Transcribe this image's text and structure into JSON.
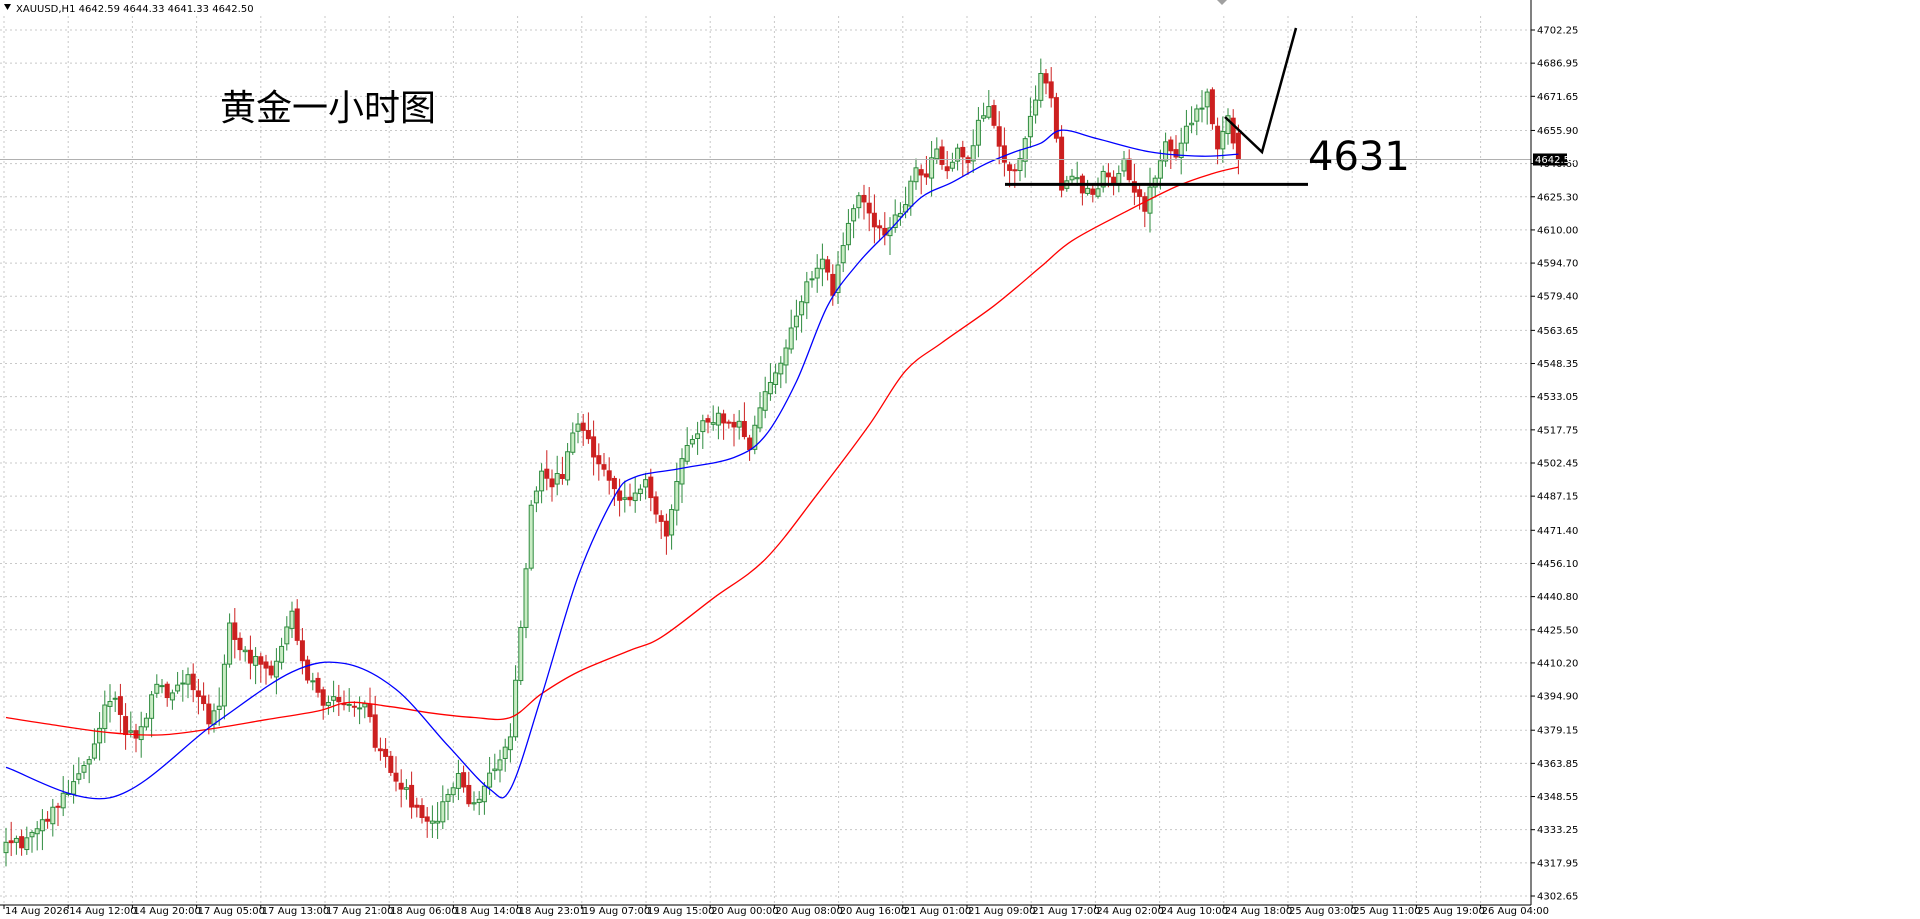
{
  "window": {
    "symbol_header": "XAUUSD,H1  4642.59 4644.33 4641.33 4642.50"
  },
  "chart_data": {
    "type": "candlestick",
    "symbol": "XAUUSD",
    "timeframe": "H1",
    "ohlc_header": {
      "open": 4642.59,
      "high": 4644.33,
      "low": 4641.33,
      "close": 4642.5
    },
    "current_price_label": "4642.50",
    "ylim": [
      4302.65,
      4710.0
    ],
    "y_ticks": [
      "4702.25",
      "4686.95",
      "4671.65",
      "4655.90",
      "4640.60",
      "4625.30",
      "4610.00",
      "4594.70",
      "4579.40",
      "4563.65",
      "4548.35",
      "4533.05",
      "4517.75",
      "4502.45",
      "4487.15",
      "4471.40",
      "4456.10",
      "4440.80",
      "4425.50",
      "4410.20",
      "4394.90",
      "4379.15",
      "4363.85",
      "4348.55",
      "4333.25",
      "4317.95",
      "4302.65"
    ],
    "x_ticks": [
      "14 Aug 2026",
      "14 Aug 12:00",
      "14 Aug 20:00",
      "17 Aug 05:00",
      "17 Aug 13:00",
      "17 Aug 21:00",
      "18 Aug 06:00",
      "18 Aug 14:00",
      "18 Aug 23:01",
      "19 Aug 07:00",
      "19 Aug 15:00",
      "20 Aug 00:00",
      "20 Aug 08:00",
      "20 Aug 16:00",
      "21 Aug 01:00",
      "21 Aug 09:00",
      "21 Aug 17:00",
      "24 Aug 02:00",
      "24 Aug 10:00",
      "24 Aug 18:00",
      "25 Aug 03:00",
      "25 Aug 11:00",
      "25 Aug 19:00",
      "26 Aug 04:00"
    ],
    "candle_colors": {
      "bull": "#2e8b3e",
      "bear": "#cc2020",
      "bull_body": "#c9ecc4",
      "bear_body": "#cc2020"
    },
    "close_path": [
      [
        0,
        4325
      ],
      [
        4,
        4328
      ],
      [
        8,
        4340
      ],
      [
        12,
        4352
      ],
      [
        15,
        4362
      ],
      [
        17,
        4375
      ],
      [
        19,
        4388
      ],
      [
        21,
        4392
      ],
      [
        23,
        4380
      ],
      [
        25,
        4376
      ],
      [
        27,
        4385
      ],
      [
        29,
        4402
      ],
      [
        31,
        4392
      ],
      [
        33,
        4398
      ],
      [
        35,
        4404
      ],
      [
        37,
        4395
      ],
      [
        39,
        4385
      ],
      [
        41,
        4392
      ],
      [
        43,
        4426
      ],
      [
        45,
        4418
      ],
      [
        47,
        4410
      ],
      [
        49,
        4412
      ],
      [
        51,
        4404
      ],
      [
        53,
        4420
      ],
      [
        55,
        4432
      ],
      [
        57,
        4410
      ],
      [
        59,
        4400
      ],
      [
        61,
        4392
      ],
      [
        63,
        4395
      ],
      [
        65,
        4392
      ],
      [
        67,
        4388
      ],
      [
        69,
        4394
      ],
      [
        71,
        4374
      ],
      [
        73,
        4365
      ],
      [
        75,
        4356
      ],
      [
        77,
        4350
      ],
      [
        79,
        4342
      ],
      [
        81,
        4336
      ],
      [
        83,
        4340
      ],
      [
        85,
        4350
      ],
      [
        87,
        4358
      ],
      [
        89,
        4346
      ],
      [
        91,
        4350
      ],
      [
        93,
        4362
      ],
      [
        95,
        4366
      ],
      [
        97,
        4376
      ],
      [
        99,
        4428
      ],
      [
        101,
        4482
      ],
      [
        103,
        4496
      ],
      [
        105,
        4492
      ],
      [
        107,
        4498
      ],
      [
        109,
        4518
      ],
      [
        111,
        4520
      ],
      [
        113,
        4508
      ],
      [
        115,
        4500
      ],
      [
        117,
        4492
      ],
      [
        119,
        4484
      ],
      [
        121,
        4486
      ],
      [
        123,
        4492
      ],
      [
        125,
        4478
      ],
      [
        127,
        4468
      ],
      [
        129,
        4496
      ],
      [
        131,
        4512
      ],
      [
        133,
        4518
      ],
      [
        135,
        4520
      ],
      [
        137,
        4524
      ],
      [
        139,
        4520
      ],
      [
        141,
        4522
      ],
      [
        143,
        4508
      ],
      [
        145,
        4530
      ],
      [
        147,
        4538
      ],
      [
        149,
        4548
      ],
      [
        151,
        4562
      ],
      [
        153,
        4578
      ],
      [
        155,
        4590
      ],
      [
        157,
        4596
      ],
      [
        159,
        4582
      ],
      [
        161,
        4602
      ],
      [
        163,
        4622
      ],
      [
        165,
        4625
      ],
      [
        167,
        4614
      ],
      [
        169,
        4608
      ],
      [
        171,
        4616
      ],
      [
        173,
        4624
      ],
      [
        175,
        4640
      ],
      [
        177,
        4636
      ],
      [
        179,
        4648
      ],
      [
        181,
        4638
      ],
      [
        183,
        4646
      ],
      [
        185,
        4640
      ],
      [
        187,
        4658
      ],
      [
        189,
        4664
      ],
      [
        191,
        4648
      ],
      [
        193,
        4640
      ],
      [
        195,
        4640
      ],
      [
        197,
        4662
      ],
      [
        199,
        4682
      ],
      [
        201,
        4672
      ],
      [
        203,
        4630
      ],
      [
        205,
        4636
      ],
      [
        207,
        4630
      ],
      [
        209,
        4624
      ],
      [
        211,
        4636
      ],
      [
        213,
        4630
      ],
      [
        215,
        4640
      ],
      [
        217,
        4628
      ],
      [
        219,
        4618
      ],
      [
        221,
        4636
      ],
      [
        223,
        4652
      ],
      [
        225,
        4644
      ],
      [
        227,
        4656
      ],
      [
        229,
        4664
      ],
      [
        231,
        4672
      ],
      [
        233,
        4648
      ],
      [
        235,
        4662
      ],
      [
        237,
        4642.5
      ]
    ],
    "ma_blue": [
      [
        0,
        4362
      ],
      [
        20,
        4348
      ],
      [
        40,
        4382
      ],
      [
        55,
        4406
      ],
      [
        65,
        4410
      ],
      [
        75,
        4398
      ],
      [
        85,
        4372
      ],
      [
        93,
        4352
      ],
      [
        97,
        4352
      ],
      [
        103,
        4395
      ],
      [
        110,
        4450
      ],
      [
        117,
        4487
      ],
      [
        121,
        4496
      ],
      [
        130,
        4500
      ],
      [
        140,
        4505
      ],
      [
        146,
        4515
      ],
      [
        152,
        4540
      ],
      [
        158,
        4575
      ],
      [
        164,
        4595
      ],
      [
        170,
        4610
      ],
      [
        176,
        4625
      ],
      [
        182,
        4632
      ],
      [
        188,
        4640
      ],
      [
        194,
        4646
      ],
      [
        199,
        4650
      ],
      [
        203,
        4656
      ],
      [
        210,
        4652
      ],
      [
        220,
        4646
      ],
      [
        230,
        4644
      ],
      [
        237,
        4645
      ]
    ],
    "ma_red": [
      [
        0,
        4385
      ],
      [
        8,
        4382
      ],
      [
        20,
        4378
      ],
      [
        30,
        4377
      ],
      [
        40,
        4380
      ],
      [
        50,
        4384
      ],
      [
        60,
        4388
      ],
      [
        66,
        4392
      ],
      [
        74,
        4390
      ],
      [
        82,
        4387
      ],
      [
        90,
        4385
      ],
      [
        97,
        4385
      ],
      [
        103,
        4396
      ],
      [
        110,
        4406
      ],
      [
        120,
        4416
      ],
      [
        126,
        4422
      ],
      [
        136,
        4440
      ],
      [
        146,
        4458
      ],
      [
        156,
        4488
      ],
      [
        166,
        4520
      ],
      [
        173,
        4545
      ],
      [
        180,
        4558
      ],
      [
        190,
        4575
      ],
      [
        199,
        4593
      ],
      [
        205,
        4605
      ],
      [
        215,
        4618
      ],
      [
        225,
        4630
      ],
      [
        232,
        4636
      ],
      [
        237,
        4639
      ]
    ],
    "annotations": {
      "title": "黄金一小时图",
      "support_level_label": "4631",
      "support_level": 4631,
      "projection": [
        [
          1225,
          117
        ],
        [
          1262,
          152
        ],
        [
          1296,
          28
        ]
      ]
    }
  }
}
